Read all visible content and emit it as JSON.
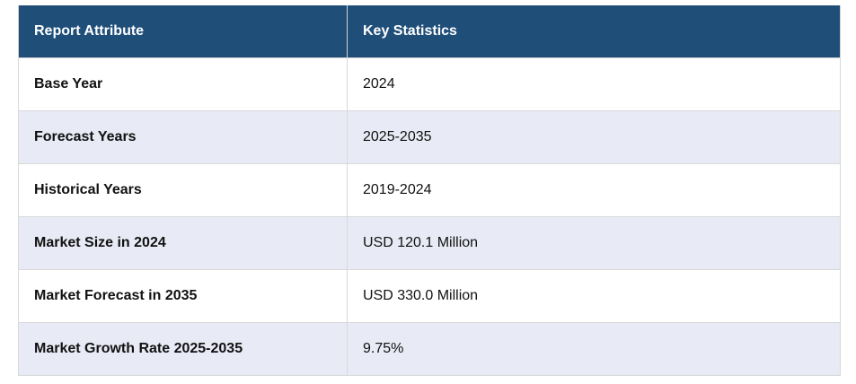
{
  "table": {
    "headers": [
      "Report Attribute",
      "Key Statistics"
    ],
    "rows": [
      {
        "attribute": "Base Year",
        "value": "2024"
      },
      {
        "attribute": "Forecast Years",
        "value": "2025-2035"
      },
      {
        "attribute": "Historical Years",
        "value": "2019-2024"
      },
      {
        "attribute": "Market Size in 2024",
        "value": "USD 120.1 Million"
      },
      {
        "attribute": "Market Forecast in 2035",
        "value": "USD 330.0 Million"
      },
      {
        "attribute": "Market Growth Rate 2025-2035",
        "value": "9.75%"
      }
    ]
  },
  "colors": {
    "header_bg": "#1f4e79",
    "header_text": "#ffffff",
    "stripe_bg": "#e8eaf5",
    "row_bg": "#ffffff"
  }
}
